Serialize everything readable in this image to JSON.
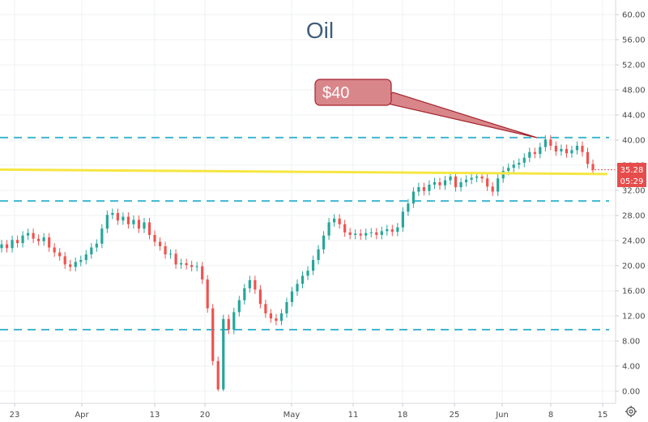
{
  "chart_data": {
    "type": "candlestick",
    "title": "Oil",
    "y_ticks": [
      "60.00",
      "56.00",
      "52.00",
      "48.00",
      "44.00",
      "40.00",
      "36.00",
      "32.00",
      "28.00",
      "24.00",
      "20.00",
      "16.00",
      "12.00",
      "8.00",
      "4.00",
      "0.00"
    ],
    "ylim": [
      0,
      60
    ],
    "x_ticks": [
      "23",
      "Apr",
      "13",
      "20",
      "May",
      "11",
      "18",
      "25",
      "Jun",
      "8",
      "15"
    ],
    "callout": {
      "label": "$40",
      "points_to_value": 40.2
    },
    "horizontal_levels": [
      {
        "value": 40.4,
        "style": "dashed",
        "color": "#3fb7d0"
      },
      {
        "value": 30.3,
        "style": "dashed",
        "color": "#3fb7d0"
      },
      {
        "value": 9.8,
        "style": "dashed",
        "color": "#3fb7d0"
      }
    ],
    "trend_line": {
      "start_value": 35.3,
      "end_value": 34.6,
      "color": "#f5e642"
    },
    "last_price": {
      "label": "35.28",
      "countdown": "05:29",
      "color": "#e64c4c"
    },
    "colors": {
      "up": "#26a69a",
      "down": "#ef5350",
      "grid": "#eef0f3",
      "level": "#3fb7d0",
      "callout_fill": "#d9868a",
      "callout_border": "#a3242c"
    },
    "close_series": [
      23.4,
      22.8,
      24.1,
      23.6,
      24.8,
      25.2,
      24.3,
      23.9,
      24.5,
      22.9,
      22.1,
      21.5,
      20.2,
      19.8,
      20.6,
      20.9,
      21.8,
      22.9,
      23.5,
      25.9,
      28.1,
      28.4,
      27.2,
      27.8,
      26.6,
      27.3,
      25.9,
      26.9,
      24.9,
      23.8,
      23.1,
      21.8,
      21.9,
      20.2,
      20.4,
      20.1,
      19.8,
      19.9,
      17.8,
      13.2,
      4.8,
      0.3,
      11.5,
      9.8,
      12.6,
      14.5,
      16.4,
      17.7,
      16.2,
      13.9,
      12.4,
      11.6,
      11.2,
      12.4,
      14.2,
      15.9,
      17.1,
      18.4,
      19.2,
      20.9,
      22.6,
      24.8,
      26.9,
      27.5,
      26.6,
      25.3,
      24.9,
      25.1,
      24.8,
      25.2,
      25.3,
      24.9,
      25.5,
      25.8,
      25.4,
      26.1,
      28.6,
      29.9,
      31.8,
      32.5,
      31.9,
      32.9,
      33.3,
      32.8,
      33.6,
      34.2,
      32.5,
      33.3,
      33.7,
      34.0,
      34.2,
      33.9,
      32.6,
      31.8,
      33.9,
      35.1,
      35.6,
      36.1,
      36.4,
      37.2,
      38.1,
      37.8,
      38.9,
      40.1,
      39.1,
      38.2,
      38.6,
      37.9,
      38.4,
      39.1,
      38.1,
      36.2,
      35.3
    ]
  }
}
